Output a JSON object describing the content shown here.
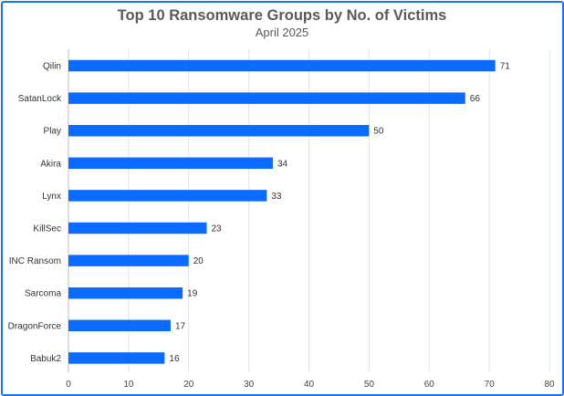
{
  "chart_data": {
    "type": "bar",
    "orientation": "horizontal",
    "title": "Top 10 Ransomware Groups by No. of Victims",
    "subtitle": "April 2025",
    "categories": [
      "Qilin",
      "SatanLock",
      "Play",
      "Akira",
      "Lynx",
      "KillSec",
      "INC Ransom",
      "Sarcoma",
      "DragonForce",
      "Babuk2"
    ],
    "values": [
      71,
      66,
      50,
      34,
      33,
      23,
      20,
      19,
      17,
      16
    ],
    "xlim": [
      0,
      80
    ],
    "xticks": [
      0,
      10,
      20,
      30,
      40,
      50,
      60,
      70,
      80
    ],
    "grid": "vertical",
    "data_labels": true,
    "legend": "none",
    "bar_color": "#0a6cff",
    "border_color": "#1a73e8"
  }
}
